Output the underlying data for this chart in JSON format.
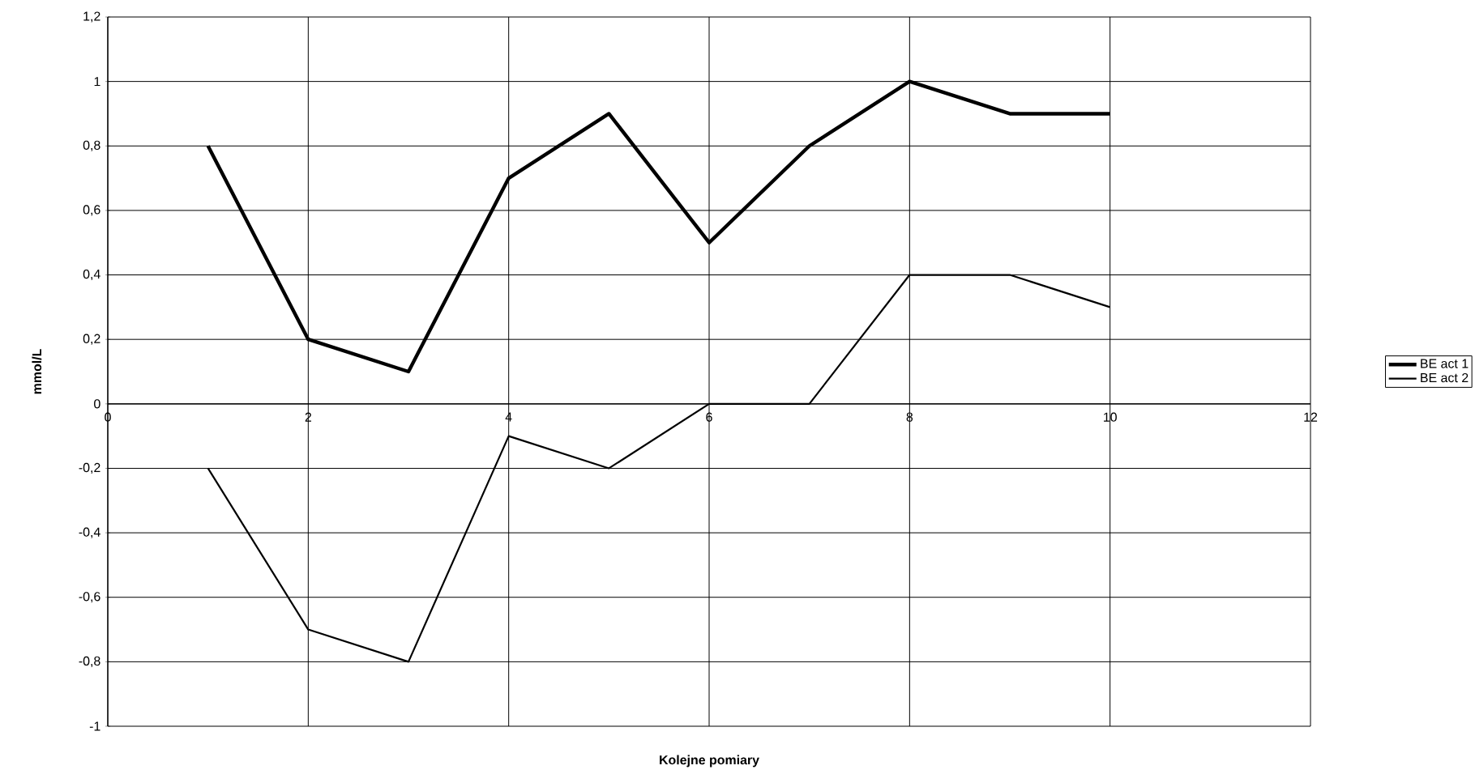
{
  "chart_data": {
    "type": "line",
    "xlabel": "Kolejne pomiary",
    "ylabel": "mmol/L",
    "x": [
      1,
      2,
      3,
      4,
      5,
      6,
      7,
      8,
      9,
      10
    ],
    "series": [
      {
        "name": "BE act 1",
        "color": "#000000",
        "values": [
          0.8,
          0.2,
          0.1,
          0.7,
          0.9,
          0.5,
          0.8,
          1.0,
          0.9,
          0.9
        ]
      },
      {
        "name": "BE act 2",
        "color": "#000000",
        "values": [
          -0.2,
          -0.7,
          -0.8,
          -0.1,
          -0.2,
          0,
          0,
          0.4,
          0.4,
          0.3
        ]
      }
    ],
    "xlim": [
      0,
      12
    ],
    "xticks": [
      0,
      2,
      4,
      6,
      8,
      10,
      12
    ],
    "ylim": [
      -1,
      1.2
    ],
    "yticks": [
      {
        "value": -1,
        "label": "-1"
      },
      {
        "value": -0.8,
        "label": "-0,8"
      },
      {
        "value": -0.6,
        "label": "-0,6"
      },
      {
        "value": -0.4,
        "label": "-0,4"
      },
      {
        "value": -0.2,
        "label": "-0,2"
      },
      {
        "value": 0,
        "label": "0"
      },
      {
        "value": 0.2,
        "label": "0,2"
      },
      {
        "value": 0.4,
        "label": "0,4"
      },
      {
        "value": 0.6,
        "label": "0,6"
      },
      {
        "value": 0.8,
        "label": "0,8"
      },
      {
        "value": 1,
        "label": "1"
      },
      {
        "value": 1.2,
        "label": "1,2"
      }
    ],
    "grid": true,
    "legend": "right",
    "marker": "none",
    "line_style": "solid"
  }
}
